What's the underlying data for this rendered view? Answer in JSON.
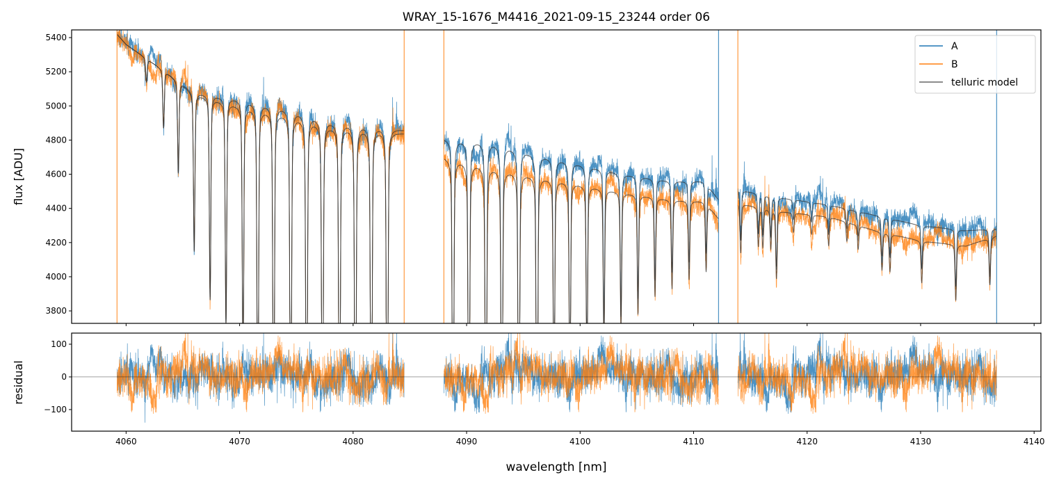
{
  "chart_data": [
    {
      "type": "line",
      "panel": "top",
      "title": "WRAY_15-1676_M4416_2021-09-15_23244  order 06",
      "xlabel": "",
      "ylabel": "flux [ADU]",
      "xlim": [
        4055.2,
        4140.6
      ],
      "ylim": [
        3727,
        5445
      ],
      "yticks": [
        3800,
        4000,
        4200,
        4400,
        4600,
        4800,
        5000,
        5200,
        5400
      ],
      "xticks": [
        4060,
        4070,
        4080,
        4090,
        4100,
        4110,
        4120,
        4130,
        4140
      ],
      "grid": false,
      "legend": {
        "placement": "top-right",
        "entries": [
          "A",
          "B",
          "telluric model"
        ]
      },
      "colors": {
        "A": "#1f77b4",
        "B": "#ff7f0e",
        "telluric model": "#333333"
      },
      "segments": [
        {
          "range": [
            4059.2,
            4084.5
          ],
          "continuum_A": [
            [
              4059.2,
              5420
            ],
            [
              4060,
              5360
            ],
            [
              4063.5,
              5200
            ],
            [
              4066,
              5080
            ],
            [
              4070,
              5040
            ],
            [
              4074,
              4990
            ],
            [
              4078,
              4910
            ],
            [
              4084.5,
              4860
            ]
          ],
          "continuum_B": [
            [
              4059.2,
              5420
            ],
            [
              4060,
              5360
            ],
            [
              4063.5,
              5200
            ],
            [
              4066,
              5070
            ],
            [
              4070,
              5000
            ],
            [
              4074,
              4950
            ],
            [
              4078,
              4880
            ],
            [
              4084.5,
              4840
            ]
          ]
        },
        {
          "range": [
            4088.0,
            4112.2
          ],
          "continuum_A": [
            [
              4088,
              4810
            ],
            [
              4092,
              4790
            ],
            [
              4096,
              4720
            ],
            [
              4100,
              4660
            ],
            [
              4104,
              4600
            ],
            [
              4108,
              4560
            ],
            [
              4111,
              4560
            ],
            [
              4112.2,
              4450
            ]
          ],
          "continuum_B": [
            [
              4088,
              4700
            ],
            [
              4092,
              4640
            ],
            [
              4096,
              4590
            ],
            [
              4100,
              4540
            ],
            [
              4104,
              4490
            ],
            [
              4108,
              4450
            ],
            [
              4111,
              4440
            ],
            [
              4112.2,
              4340
            ]
          ]
        },
        {
          "range": [
            4113.9,
            4136.7
          ],
          "continuum_A": [
            [
              4113.9,
              4510
            ],
            [
              4118,
              4460
            ],
            [
              4122,
              4420
            ],
            [
              4126,
              4360
            ],
            [
              4130,
              4300
            ],
            [
              4134,
              4270
            ],
            [
              4136.7,
              4280
            ]
          ],
          "continuum_B": [
            [
              4113.9,
              4430
            ],
            [
              4118,
              4380
            ],
            [
              4122,
              4350
            ],
            [
              4126,
              4270
            ],
            [
              4130,
              4210
            ],
            [
              4134,
              4180
            ],
            [
              4136.7,
              4240
            ]
          ]
        }
      ],
      "telluric_lines": [
        [
          4061.8,
          0.02
        ],
        [
          4063.3,
          0.05
        ],
        [
          4064.6,
          0.08
        ],
        [
          4066.0,
          0.14
        ],
        [
          4067.4,
          0.18
        ],
        [
          4068.8,
          0.2
        ],
        [
          4070.3,
          0.24
        ],
        [
          4071.6,
          0.28
        ],
        [
          4073.0,
          0.3
        ],
        [
          4074.5,
          0.32
        ],
        [
          4075.9,
          0.32
        ],
        [
          4077.3,
          0.32
        ],
        [
          4078.8,
          0.32
        ],
        [
          4080.2,
          0.32
        ],
        [
          4081.6,
          0.32
        ],
        [
          4083.0,
          0.32
        ],
        [
          4088.8,
          0.3
        ],
        [
          4090.2,
          0.3
        ],
        [
          4091.7,
          0.3
        ],
        [
          4093.1,
          0.3
        ],
        [
          4094.6,
          0.3
        ],
        [
          4096.2,
          0.3
        ],
        [
          4097.7,
          0.25
        ],
        [
          4099.1,
          0.22
        ],
        [
          4100.6,
          0.19
        ],
        [
          4102.1,
          0.16
        ],
        [
          4103.6,
          0.14
        ],
        [
          4105.1,
          0.12
        ],
        [
          4106.6,
          0.1
        ],
        [
          4108.1,
          0.09
        ],
        [
          4109.6,
          0.08
        ],
        [
          4111.1,
          0.07
        ],
        [
          4114.15,
          0.05
        ],
        [
          4115.7,
          0.04
        ],
        [
          4116.1,
          0.04
        ],
        [
          4116.8,
          0.04
        ],
        [
          4117.3,
          0.07
        ],
        [
          4118.8,
          0.02
        ],
        [
          4120.4,
          0.02
        ],
        [
          4121.9,
          0.03
        ],
        [
          4123.5,
          0.02
        ],
        [
          4124.5,
          0.025
        ],
        [
          4126.6,
          0.04
        ],
        [
          4127.3,
          0.04
        ],
        [
          4130.1,
          0.045
        ],
        [
          4133.1,
          0.06
        ],
        [
          4136.1,
          0.05
        ]
      ],
      "edge_spikes": [
        {
          "x": 4059.2,
          "series": "B"
        },
        {
          "x": 4084.5,
          "series": "B"
        },
        {
          "x": 4088.0,
          "series": "B"
        },
        {
          "x": 4112.2,
          "series": "A"
        },
        {
          "x": 4113.9,
          "series": "B"
        },
        {
          "x": 4136.7,
          "series": "A"
        }
      ]
    },
    {
      "type": "line",
      "panel": "bottom",
      "xlabel": "wavelength [nm]",
      "ylabel": "residual",
      "xlim": [
        4055.2,
        4140.6
      ],
      "ylim": [
        -166,
        134
      ],
      "yticks": [
        -100,
        0,
        100
      ],
      "xticks": [
        4060,
        4070,
        4080,
        4090,
        4100,
        4110,
        4120,
        4130,
        4140
      ],
      "zero_line": 0,
      "typical_noise_sigma": 35
    }
  ]
}
